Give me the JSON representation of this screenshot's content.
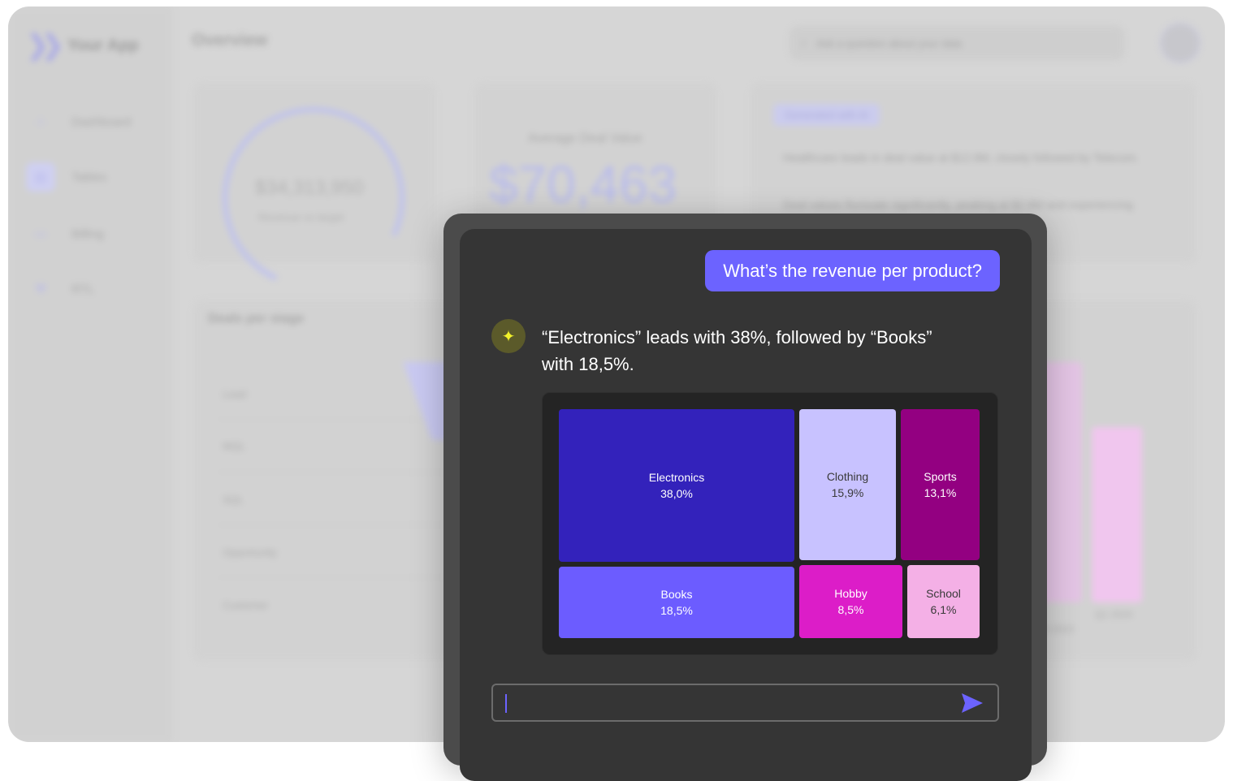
{
  "background_app": {
    "app_name": "Your App",
    "page_title": "Overview",
    "search_placeholder": "Ask a question about your data",
    "nav": [
      {
        "label": "Dashboard",
        "icon": "home-icon"
      },
      {
        "label": "Tables",
        "icon": "table-icon"
      },
      {
        "label": "Billing",
        "icon": "billing-icon"
      },
      {
        "label": "RTL",
        "icon": "wrench-icon"
      }
    ],
    "revenue_card": {
      "value": "$34,313,950",
      "label": "Revenue vs target"
    },
    "avg_deal_card": {
      "label": "Average Deal Value",
      "value": "$70,463"
    },
    "insights_card": {
      "chip": "Generated with AI",
      "bullets": [
        "Healthcare leads in deal value at $12.9M, closely followed by Telecom.",
        "Deal values fluctuate significantly, peaking at $2.8M and experiencing sharp declines."
      ]
    },
    "deals_card": {
      "title": "Deals per stage",
      "stages": [
        "Lead",
        "MQL",
        "SQL",
        "Opportunity",
        "Customer"
      ]
    },
    "bars_card": {
      "labels": [
        "Q4 2023",
        "Q1 2024"
      ]
    }
  },
  "chat": {
    "user_message": "What’s the revenue per product?",
    "ai_icon": "sparkle-icon",
    "ai_message": "“Electronics” leads with 38%, followed by “Books” with 18,5%.",
    "input_value": "",
    "send_icon": "send-icon"
  },
  "chart_data": {
    "type": "treemap",
    "title": "",
    "items": [
      {
        "name": "Electronics",
        "label": "38,0%",
        "value": 38.0,
        "color": "#3322bb",
        "text_color": "#ffffff"
      },
      {
        "name": "Books",
        "label": "18,5%",
        "value": 18.5,
        "color": "#6c5cff",
        "text_color": "#ffffff"
      },
      {
        "name": "Clothing",
        "label": "15,9%",
        "value": 15.9,
        "color": "#c8c2ff",
        "text_color": "#3a3a3a"
      },
      {
        "name": "Sports",
        "label": "13,1%",
        "value": 13.1,
        "color": "#930081",
        "text_color": "#ffffff"
      },
      {
        "name": "Hobby",
        "label": "8,5%",
        "value": 8.5,
        "color": "#dc1dc8",
        "text_color": "#ffffff"
      },
      {
        "name": "School",
        "label": "6,1%",
        "value": 6.1,
        "color": "#f4b0e6",
        "text_color": "#3a3a3a"
      }
    ]
  }
}
